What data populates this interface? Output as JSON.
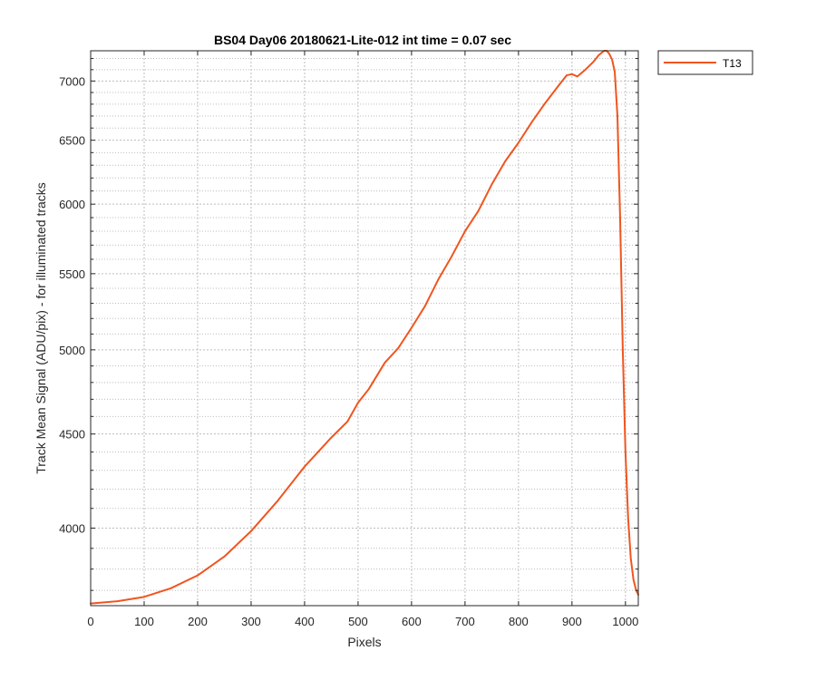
{
  "chart_data": {
    "type": "line",
    "title": "BS04 Day06 20180621-Lite-012 int time = 0.07 sec",
    "xlabel": "Pixels",
    "ylabel": "Track Mean Signal (ADU/pix) - for illuminated tracks",
    "xlim": [
      0,
      1024
    ],
    "ylim": [
      3630,
      7270
    ],
    "yscale": "log",
    "xticks": [
      0,
      100,
      200,
      300,
      400,
      500,
      600,
      700,
      800,
      900,
      1000
    ],
    "yticks": [
      4000,
      4500,
      5000,
      5500,
      6000,
      6500,
      7000
    ],
    "grid": "major and minor, dotted",
    "legend_position": "outside top-right",
    "series": [
      {
        "name": "T13",
        "color": "#f0551f",
        "x": [
          0,
          50,
          100,
          150,
          200,
          250,
          300,
          350,
          400,
          450,
          480,
          500,
          520,
          550,
          575,
          600,
          625,
          650,
          675,
          700,
          725,
          750,
          775,
          800,
          825,
          850,
          875,
          890,
          900,
          910,
          925,
          940,
          950,
          960,
          965,
          970,
          975,
          980,
          985,
          990,
          995,
          1000,
          1005,
          1010,
          1015,
          1020,
          1024
        ],
        "values": [
          3640,
          3650,
          3670,
          3710,
          3770,
          3860,
          3985,
          4140,
          4320,
          4480,
          4570,
          4680,
          4760,
          4920,
          5010,
          5140,
          5280,
          5460,
          5620,
          5800,
          5950,
          6150,
          6330,
          6480,
          6650,
          6810,
          6960,
          7050,
          7060,
          7040,
          7100,
          7170,
          7230,
          7270,
          7270,
          7240,
          7190,
          7080,
          6700,
          5900,
          5000,
          4400,
          4050,
          3850,
          3750,
          3700,
          3680
        ]
      }
    ]
  }
}
